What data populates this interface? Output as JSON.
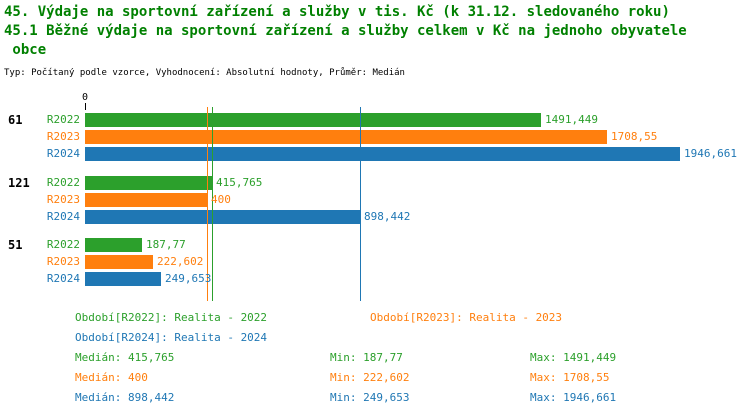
{
  "title": {
    "line1": "45. Výdaje na sportovní zařízení a služby v tis. Kč (k 31.12. sledovaného roku)",
    "line2": "45.1 Běžné výdaje na sportovní zařízení a služby celkem v Kč na jednoho obyvatele",
    "line3": " obce",
    "meta": "Typ: Počítaný podle vzorce, Vyhodnocení: Absolutní hodnoty, Průměr: Medián"
  },
  "colors": {
    "r2022": "#2ca02c",
    "r2023": "#ff7f0e",
    "r2024": "#1f77b4",
    "title_green": "#008000",
    "text": "#000000"
  },
  "chart_data": {
    "type": "bar",
    "orientation": "horizontal",
    "xlim": [
      0,
      1946.661
    ],
    "x_axis_origin_label": "0",
    "grid": false,
    "groups": [
      {
        "category": "61",
        "bars": [
          {
            "series": "R2022",
            "value": 1491.449,
            "label": "1491,449"
          },
          {
            "series": "R2023",
            "value": 1708.55,
            "label": "1708,55"
          },
          {
            "series": "R2024",
            "value": 1946.661,
            "label": "1946,661"
          }
        ]
      },
      {
        "category": "121",
        "bars": [
          {
            "series": "R2022",
            "value": 415.765,
            "label": "415,765"
          },
          {
            "series": "R2023",
            "value": 400,
            "label": "400"
          },
          {
            "series": "R2024",
            "value": 898.442,
            "label": "898,442"
          }
        ]
      },
      {
        "category": "51",
        "bars": [
          {
            "series": "R2022",
            "value": 187.77,
            "label": "187,77"
          },
          {
            "series": "R2023",
            "value": 222.602,
            "label": "222,602"
          },
          {
            "series": "R2024",
            "value": 249.653,
            "label": "249,653"
          }
        ]
      }
    ],
    "median_lines": [
      {
        "series": "R2022",
        "value": 415.765
      },
      {
        "series": "R2023",
        "value": 400
      },
      {
        "series": "R2024",
        "value": 898.442
      }
    ]
  },
  "legend": {
    "r2022": "Období[R2022]: Realita - 2022",
    "r2023": "Období[R2023]: Realita - 2023",
    "r2024": "Období[R2024]: Realita - 2024"
  },
  "stats": {
    "r2022": {
      "median": "Medián: 415,765",
      "min": "Min: 187,77",
      "max": "Max: 1491,449"
    },
    "r2023": {
      "median": "Medián: 400",
      "min": "Min: 222,602",
      "max": "Max: 1708,55"
    },
    "r2024": {
      "median": "Medián: 898,442",
      "min": "Min: 249,653",
      "max": "Max: 1946,661"
    }
  }
}
